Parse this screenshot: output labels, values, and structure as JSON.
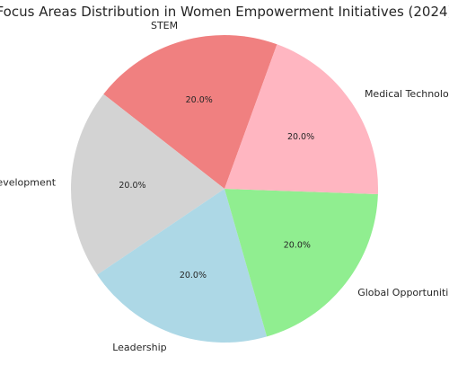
{
  "chart_data": {
    "type": "pie",
    "title": "Focus Areas Distribution in Women Empowerment Initiatives (2024)",
    "labels": [
      "STEM",
      "Entrepreneurship Development",
      "Leadership",
      "Global Opportunities",
      "Medical Technology"
    ],
    "values": [
      20.0,
      20.0,
      20.0,
      20.0,
      20.0
    ],
    "value_labels": [
      "20.0%",
      "20.0%",
      "20.0%",
      "20.0%",
      "20.0%"
    ],
    "colors": [
      "#f08080",
      "#d3d3d3",
      "#add8e6",
      "#90ee90",
      "#ffb6c1"
    ],
    "start_angle_deg": 70,
    "direction": "counterclockwise",
    "legend": "none"
  }
}
